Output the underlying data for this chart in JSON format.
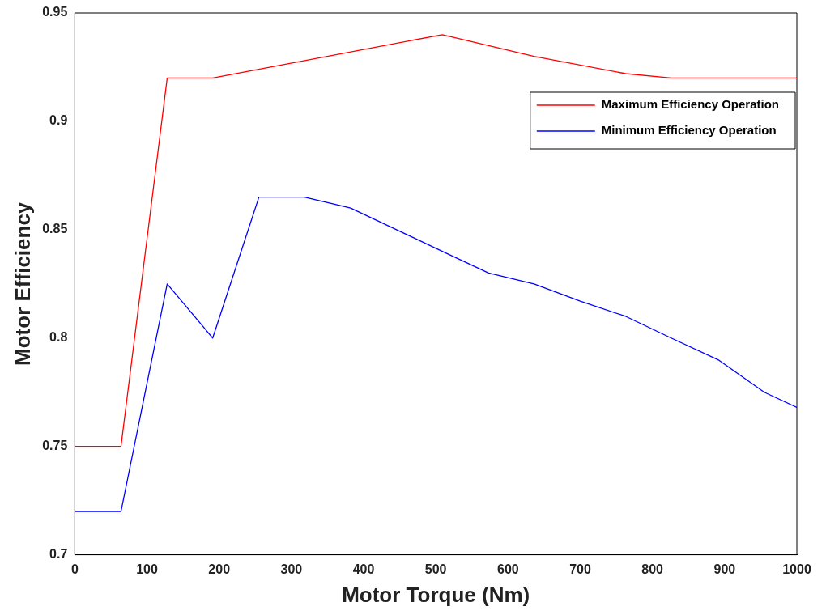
{
  "chart_data": {
    "type": "line",
    "xlabel": "Motor Torque (Nm)",
    "ylabel": "Motor Efficiency",
    "xlim": [
      0,
      1000
    ],
    "xticks": [
      0,
      100,
      200,
      300,
      400,
      500,
      600,
      700,
      800,
      900,
      1000
    ],
    "ylim": [
      0.7,
      0.95
    ],
    "yticks": [
      0.7,
      0.75,
      0.8,
      0.85,
      0.9,
      0.95
    ],
    "grid": false,
    "legend": "top right",
    "marker": "none",
    "line_style": "solid",
    "series": [
      {
        "name": "Maximum Efficiency Operation",
        "color": "#ff0000",
        "x": [
          0,
          64,
          128,
          191,
          509,
          636,
          763,
          826,
          1000
        ],
        "values": [
          0.75,
          0.75,
          0.92,
          0.92,
          0.94,
          0.93,
          0.922,
          0.92,
          0.92
        ]
      },
      {
        "name": "Minimum Efficiency Operation",
        "color": "#0000ff",
        "x": [
          0,
          64,
          128,
          191,
          255,
          318,
          382,
          509,
          573,
          636,
          700,
          763,
          826,
          891,
          955,
          1000
        ],
        "values": [
          0.72,
          0.72,
          0.825,
          0.8,
          0.865,
          0.865,
          0.86,
          0.84,
          0.83,
          0.825,
          0.817,
          0.81,
          0.8,
          0.79,
          0.775,
          0.768
        ]
      }
    ]
  }
}
